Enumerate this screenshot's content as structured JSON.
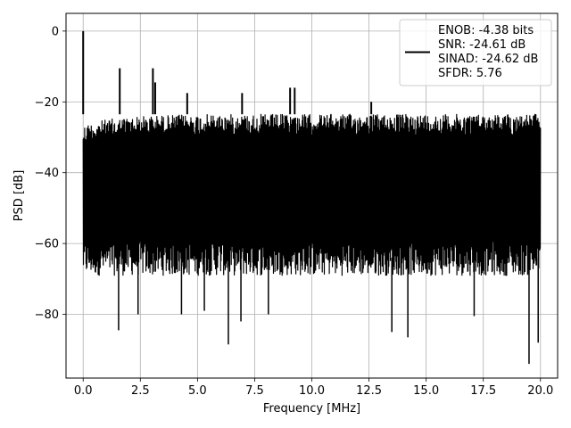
{
  "chart_data": {
    "type": "line",
    "xlabel": "Frequency [MHz]",
    "ylabel": "PSD [dB]",
    "xlim": [
      -0.75,
      20.75
    ],
    "ylim": [
      -98,
      5
    ],
    "x_ticks": [
      0.0,
      2.5,
      5.0,
      7.5,
      10.0,
      12.5,
      15.0,
      17.5,
      20.0
    ],
    "x_tick_labels": [
      "0.0",
      "2.5",
      "5.0",
      "7.5",
      "10.0",
      "12.5",
      "15.0",
      "17.5",
      "20.0"
    ],
    "y_ticks": [
      0,
      -20,
      -40,
      -60,
      -80
    ],
    "y_tick_labels": [
      "0",
      "−20",
      "−40",
      "−60",
      "−80"
    ],
    "grid": true,
    "legend_position": "top-right",
    "legend": {
      "lines": [
        "ENOB: -4.38 bits",
        "SNR: -24.61 dB",
        "SINAD: -24.62 dB",
        "SFDR: 5.76"
      ]
    },
    "series": [
      {
        "color": "#000000",
        "noise_band": {
          "x_range": [
            0,
            20
          ],
          "upper_db": -23.5,
          "lower_db": -64
        },
        "peaks": [
          {
            "x": 0.0,
            "y": 0
          },
          {
            "x": 1.6,
            "y": -10.5
          },
          {
            "x": 3.05,
            "y": -10.5
          },
          {
            "x": 3.15,
            "y": -14.5
          },
          {
            "x": 4.55,
            "y": -17.5
          },
          {
            "x": 6.95,
            "y": -17.5
          },
          {
            "x": 9.05,
            "y": -16
          },
          {
            "x": 9.25,
            "y": -16
          },
          {
            "x": 12.6,
            "y": -20
          }
        ],
        "dips": [
          {
            "x": 1.55,
            "y": -84.5
          },
          {
            "x": 2.4,
            "y": -80
          },
          {
            "x": 4.3,
            "y": -80
          },
          {
            "x": 5.3,
            "y": -79
          },
          {
            "x": 6.35,
            "y": -88.5
          },
          {
            "x": 6.9,
            "y": -82
          },
          {
            "x": 8.1,
            "y": -80
          },
          {
            "x": 13.5,
            "y": -85
          },
          {
            "x": 14.2,
            "y": -86.5
          },
          {
            "x": 17.1,
            "y": -80.5
          },
          {
            "x": 19.5,
            "y": -94
          },
          {
            "x": 19.9,
            "y": -88
          }
        ]
      }
    ]
  }
}
